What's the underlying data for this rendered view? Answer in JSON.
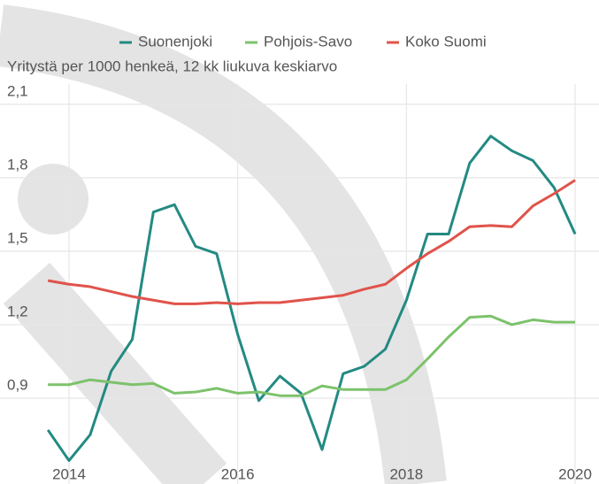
{
  "chart_data": {
    "type": "line",
    "subtitle": "Yritystä per 1000 henkeä, 12 kk liukuva keskiarvo",
    "x": [
      2013.75,
      2014.0,
      2014.25,
      2014.5,
      2014.75,
      2015.0,
      2015.25,
      2015.5,
      2015.75,
      2016.0,
      2016.25,
      2016.5,
      2016.75,
      2017.0,
      2017.25,
      2017.5,
      2017.75,
      2018.0,
      2018.25,
      2018.5,
      2018.75,
      2019.0,
      2019.25,
      2019.5,
      2019.75,
      2020.0
    ],
    "series": [
      {
        "name": "Suonenjoki",
        "color": "#238a82",
        "values": [
          0.77,
          0.645,
          0.75,
          1.01,
          1.14,
          1.66,
          1.69,
          1.52,
          1.49,
          1.16,
          0.89,
          0.99,
          0.92,
          0.69,
          1.0,
          1.03,
          1.1,
          1.3,
          1.57,
          1.57,
          1.86,
          1.97,
          1.91,
          1.87,
          1.76,
          1.57
        ]
      },
      {
        "name": "Pohjois-Savo",
        "color": "#7dc26b",
        "values": [
          0.955,
          0.955,
          0.975,
          0.965,
          0.955,
          0.96,
          0.92,
          0.925,
          0.94,
          0.92,
          0.925,
          0.91,
          0.91,
          0.95,
          0.935,
          0.935,
          0.935,
          0.975,
          1.06,
          1.15,
          1.23,
          1.235,
          1.2,
          1.22,
          1.21,
          1.21
        ]
      },
      {
        "name": "Koko Suomi",
        "color": "#e0534b",
        "values": [
          1.38,
          1.365,
          1.355,
          1.335,
          1.315,
          1.3,
          1.285,
          1.285,
          1.29,
          1.285,
          1.29,
          1.29,
          1.3,
          1.31,
          1.32,
          1.345,
          1.365,
          1.43,
          1.49,
          1.54,
          1.6,
          1.605,
          1.6,
          1.685,
          1.735,
          1.79
        ]
      }
    ],
    "xlim": [
      2013.7,
      2020.05
    ],
    "xticks": [
      2014,
      2016,
      2018,
      2020
    ],
    "ylim": [
      0.6,
      2.15
    ],
    "yticks": [
      {
        "value": 0.9,
        "label": "0,9"
      },
      {
        "value": 1.2,
        "label": "1,2"
      },
      {
        "value": 1.5,
        "label": "1,5"
      },
      {
        "value": 1.8,
        "label": "1,8"
      },
      {
        "value": 2.1,
        "label": "2,1"
      }
    ],
    "grid": true,
    "legend": "top"
  }
}
